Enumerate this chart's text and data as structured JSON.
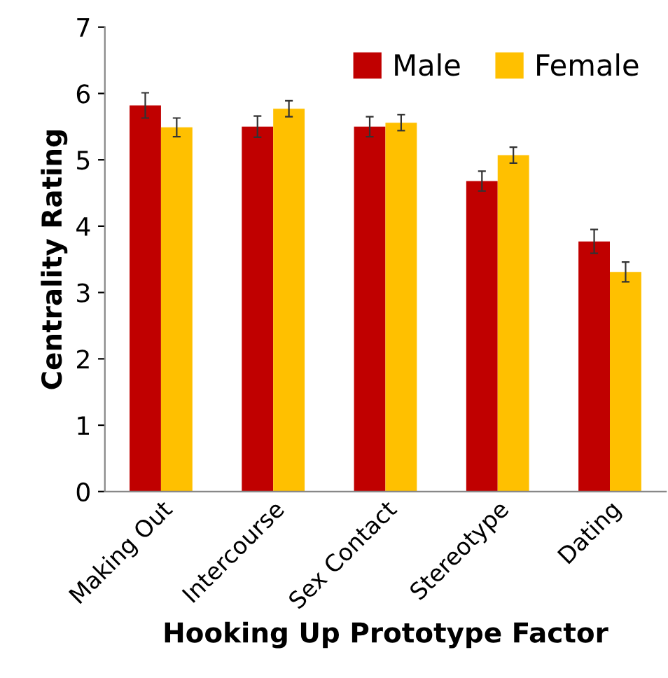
{
  "chart_data": {
    "type": "bar",
    "xlabel": "Hooking Up Prototype Factor",
    "ylabel": "Centrality Rating",
    "categories": [
      "Making Out",
      "Intercourse",
      "Sex Contact",
      "Stereotype",
      "Dating"
    ],
    "series": [
      {
        "name": "Male",
        "color": "#c00000",
        "values": [
          5.82,
          5.5,
          5.5,
          4.68,
          3.77
        ],
        "errors": [
          0.19,
          0.16,
          0.15,
          0.15,
          0.18
        ]
      },
      {
        "name": "Female",
        "color": "#ffc000",
        "values": [
          5.49,
          5.77,
          5.56,
          5.07,
          3.31
        ],
        "errors": [
          0.14,
          0.12,
          0.12,
          0.12,
          0.15
        ]
      }
    ],
    "ylim": [
      0,
      7
    ],
    "yticks": [
      0,
      1,
      2,
      3,
      4,
      5,
      6,
      7
    ],
    "grid": false,
    "legend": "top right"
  }
}
